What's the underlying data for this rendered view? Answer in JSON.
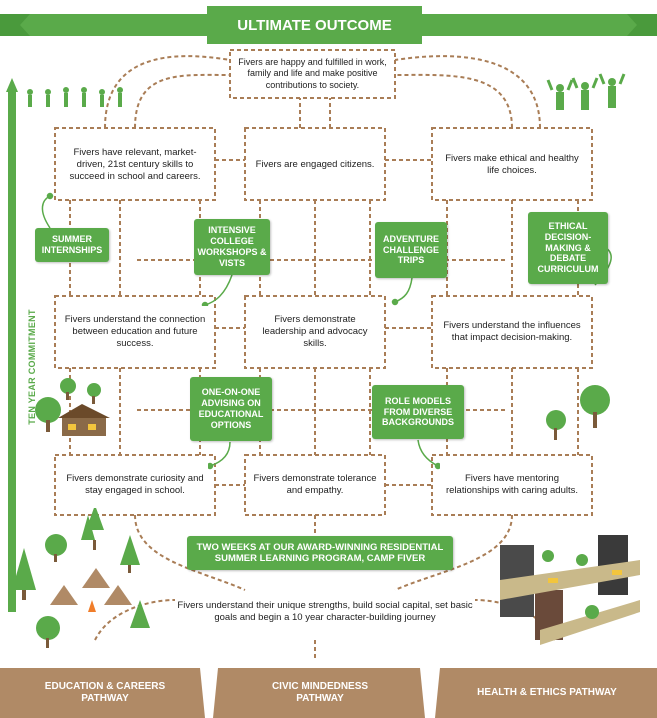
{
  "title": "ULTIMATE OUTCOME",
  "side_label": "TEN YEAR COMMITMENT",
  "ultimate_text": "Fivers are happy and fulfilled in work, family and life and make positive contributions to society.",
  "row1": [
    "Fivers have relevant, market-driven, 21st century skills to succeed in school and careers.",
    "Fivers are engaged citizens.",
    "Fivers make ethical and healthy life choices."
  ],
  "row2": [
    "Fivers understand the connection between education and future success.",
    "Fivers demonstrate leadership and advocacy skills.",
    "Fivers understand the influences that impact decision-making."
  ],
  "row3": [
    "Fivers demonstrate curiosity and stay engaged in school.",
    "Fivers demonstrate tolerance and empathy.",
    "Fivers have mentoring relationships with caring adults."
  ],
  "foundation_text": "Fivers understand their unique strengths, build social capital, set basic goals and begin a 10 year character-building journey",
  "tags": {
    "summer_internships": "SUMMER INTERNSHIPS",
    "college_workshops": "INTENSIVE COLLEGE WORKSHOPS & VISTS",
    "adventure_trips": "ADVENTURE CHALLENGE TRIPS",
    "ethical_curriculum": "ETHICAL DECISION-MAKING & DEBATE CURRICULUM",
    "advising": "ONE-ON-ONE ADVISING ON EDUCATIONAL OPTIONS",
    "role_models": "ROLE MODELS FROM DIVERSE BACKGROUNDS",
    "camp": "TWO WEEKS AT OUR AWARD-WINNING RESIDENTIAL SUMMER LEARNING PROGRAM, CAMP FIVER"
  },
  "pathways": [
    "EDUCATION & CAREERS PATHWAY",
    "CIVIC MINDEDNESS PATHWAY",
    "HEALTH & ETHICS PATHWAY"
  ],
  "colors": {
    "green": "#5aaa4a",
    "brown": "#a97d56",
    "pathway": "#b08a66"
  }
}
